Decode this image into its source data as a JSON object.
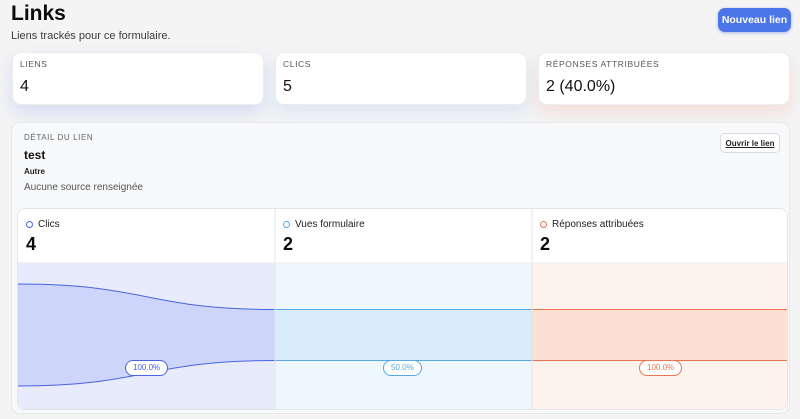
{
  "header": {
    "title": "Links",
    "subtitle": "Liens trackés pour ce formulaire.",
    "new_link_label": "Nouveau lien"
  },
  "stats": [
    {
      "label": "LIENS",
      "value": "4"
    },
    {
      "label": "CLICS",
      "value": "5"
    },
    {
      "label": "RÉPONSES ATTRIBUÉES",
      "value": "2 (40.0%)"
    }
  ],
  "detail": {
    "label": "DÉTAIL DU LIEN",
    "name": "test",
    "type": "Autre",
    "source": "Aucune source renseignée",
    "open_link_label": "Ouvrir le lien"
  },
  "funnel": {
    "max": 4,
    "stages": [
      {
        "label": "Clics",
        "value": 4,
        "pct": "100.0%",
        "color": "#4a63e0",
        "fill": "#e7ebfc",
        "band": "#cdd6fa"
      },
      {
        "label": "Vues formulaire",
        "value": 2,
        "pct": "50.0%",
        "color": "#5aa8e0",
        "fill": "#eef7fd",
        "band": "#d8ecfa"
      },
      {
        "label": "Réponses attribuées",
        "value": 2,
        "pct": "100.0%",
        "color": "#e8754f",
        "fill": "#fdf2ec",
        "band": "#fbe0d3"
      }
    ]
  }
}
